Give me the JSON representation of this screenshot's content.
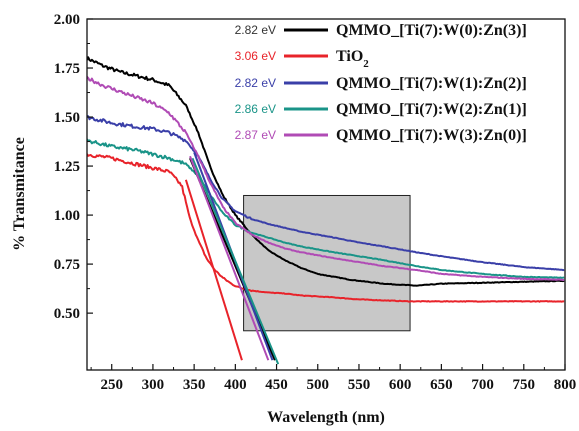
{
  "chart_data": {
    "type": "line",
    "xlabel": "Wavelength (nm)",
    "ylabel": "% Transmitance",
    "xlim": [
      220,
      800
    ],
    "ylim": [
      0.21,
      2.0
    ],
    "xticks": [
      250,
      300,
      350,
      400,
      450,
      500,
      550,
      600,
      650,
      700,
      750,
      800
    ],
    "xtick_labels": [
      "250",
      "300",
      "350",
      "400",
      "450",
      "500",
      "550",
      "600",
      "650",
      "700",
      "750",
      "800"
    ],
    "yticks": [
      0.5,
      0.75,
      1.0,
      1.25,
      1.5,
      1.75,
      2.0
    ],
    "ytick_labels": [
      "0.50",
      "0.75",
      "1.00",
      "1.25",
      "1.50",
      "1.75",
      "2.00"
    ],
    "legend_position": "top-right",
    "highlight_region": {
      "x": [
        410,
        612
      ],
      "y": [
        0.41,
        1.1
      ],
      "color": "#c8c8c8"
    },
    "series": [
      {
        "name": "QMMO_[Ti(7):W(0):Zn(3)]",
        "legend_pre": "QMMO_[Ti(7):W(0):Zn(3)]",
        "legend_sub": "",
        "legend_post": "",
        "bandgap_label": "2.82 eV",
        "color": "#000000",
        "label_color": "#333333",
        "x": [
          220,
          240,
          260,
          280,
          300,
          320,
          340,
          355,
          370,
          385,
          400,
          420,
          440,
          460,
          480,
          500,
          520,
          540,
          560,
          580,
          600,
          620,
          650,
          700,
          750,
          800
        ],
        "y": [
          1.8,
          1.76,
          1.73,
          1.71,
          1.69,
          1.66,
          1.56,
          1.42,
          1.24,
          1.1,
          1.0,
          0.9,
          0.82,
          0.77,
          0.73,
          0.7,
          0.685,
          0.67,
          0.66,
          0.65,
          0.645,
          0.64,
          0.65,
          0.655,
          0.66,
          0.665
        ],
        "tangent": {
          "x": [
            345,
            448
          ],
          "y": [
            1.29,
            0.26
          ]
        }
      },
      {
        "name": "TiO2",
        "legend_pre": "TiO",
        "legend_sub": "2",
        "legend_post": "",
        "bandgap_label": "3.06 eV",
        "color": "#e8232a",
        "label_color": "#e8232a",
        "x": [
          220,
          250,
          280,
          300,
          320,
          335,
          345,
          355,
          365,
          375,
          385,
          395,
          405,
          420,
          440,
          460,
          480,
          500,
          520,
          550,
          580,
          612,
          650,
          700,
          750,
          800
        ],
        "y": [
          1.31,
          1.29,
          1.26,
          1.24,
          1.22,
          1.15,
          0.98,
          0.87,
          0.78,
          0.72,
          0.68,
          0.65,
          0.63,
          0.615,
          0.605,
          0.6,
          0.59,
          0.585,
          0.58,
          0.57,
          0.565,
          0.56,
          0.56,
          0.56,
          0.56,
          0.56
        ],
        "tangent": {
          "x": [
            340,
            408
          ],
          "y": [
            1.18,
            0.26
          ]
        }
      },
      {
        "name": "QMMO_[Ti(7):W(1):Zn(2)]",
        "legend_pre": "QMMO_[Ti(7):W(1):Zn(2)]",
        "legend_sub": "",
        "legend_post": "",
        "bandgap_label": "2.82 eV",
        "color": "#3a3fa8",
        "label_color": "#3a3fa8",
        "x": [
          220,
          250,
          280,
          300,
          320,
          340,
          355,
          370,
          385,
          400,
          420,
          440,
          460,
          480,
          500,
          520,
          550,
          580,
          600,
          620,
          650,
          700,
          750,
          800
        ],
        "y": [
          1.5,
          1.47,
          1.45,
          1.44,
          1.42,
          1.38,
          1.3,
          1.18,
          1.08,
          1.02,
          0.98,
          0.955,
          0.935,
          0.915,
          0.9,
          0.885,
          0.86,
          0.84,
          0.825,
          0.81,
          0.79,
          0.76,
          0.735,
          0.72
        ],
        "tangent": {
          "x": [
            350,
            445
          ],
          "y": [
            1.32,
            0.26
          ]
        }
      },
      {
        "name": "QMMO_[Ti(7):W(2):Zn(1)]",
        "legend_pre": "QMMO_[Ti(7):W(2):Zn(1)]",
        "legend_sub": "",
        "legend_post": "",
        "bandgap_label": "2.86 eV",
        "color": "#1a9488",
        "label_color": "#1a9488",
        "x": [
          220,
          250,
          280,
          300,
          320,
          340,
          355,
          370,
          385,
          400,
          420,
          440,
          460,
          480,
          500,
          520,
          550,
          580,
          600,
          620,
          650,
          700,
          750,
          800
        ],
        "y": [
          1.38,
          1.35,
          1.33,
          1.31,
          1.29,
          1.26,
          1.2,
          1.1,
          1.01,
          0.95,
          0.91,
          0.885,
          0.86,
          0.84,
          0.825,
          0.81,
          0.79,
          0.77,
          0.755,
          0.74,
          0.72,
          0.7,
          0.685,
          0.68
        ],
        "tangent": {
          "x": [
            348,
            452
          ],
          "y": [
            1.29,
            0.24
          ]
        }
      },
      {
        "name": "QMMO_[Ti(7):W(3):Zn(0)]",
        "legend_pre": "QMMO_[Ti(7):W(3):Zn(0)]",
        "legend_sub": "",
        "legend_post": "",
        "bandgap_label": "2.87 eV",
        "color": "#b04bb5",
        "label_color": "#b04bb5",
        "x": [
          220,
          240,
          260,
          280,
          300,
          320,
          340,
          355,
          370,
          385,
          400,
          420,
          440,
          460,
          480,
          500,
          520,
          550,
          580,
          600,
          620,
          650,
          700,
          750,
          800
        ],
        "y": [
          1.7,
          1.66,
          1.63,
          1.6,
          1.57,
          1.52,
          1.42,
          1.3,
          1.16,
          1.04,
          0.96,
          0.9,
          0.86,
          0.83,
          0.81,
          0.795,
          0.78,
          0.76,
          0.74,
          0.73,
          0.72,
          0.7,
          0.685,
          0.675,
          0.67
        ],
        "tangent": {
          "x": [
            345,
            440
          ],
          "y": [
            1.3,
            0.26
          ]
        }
      }
    ]
  }
}
